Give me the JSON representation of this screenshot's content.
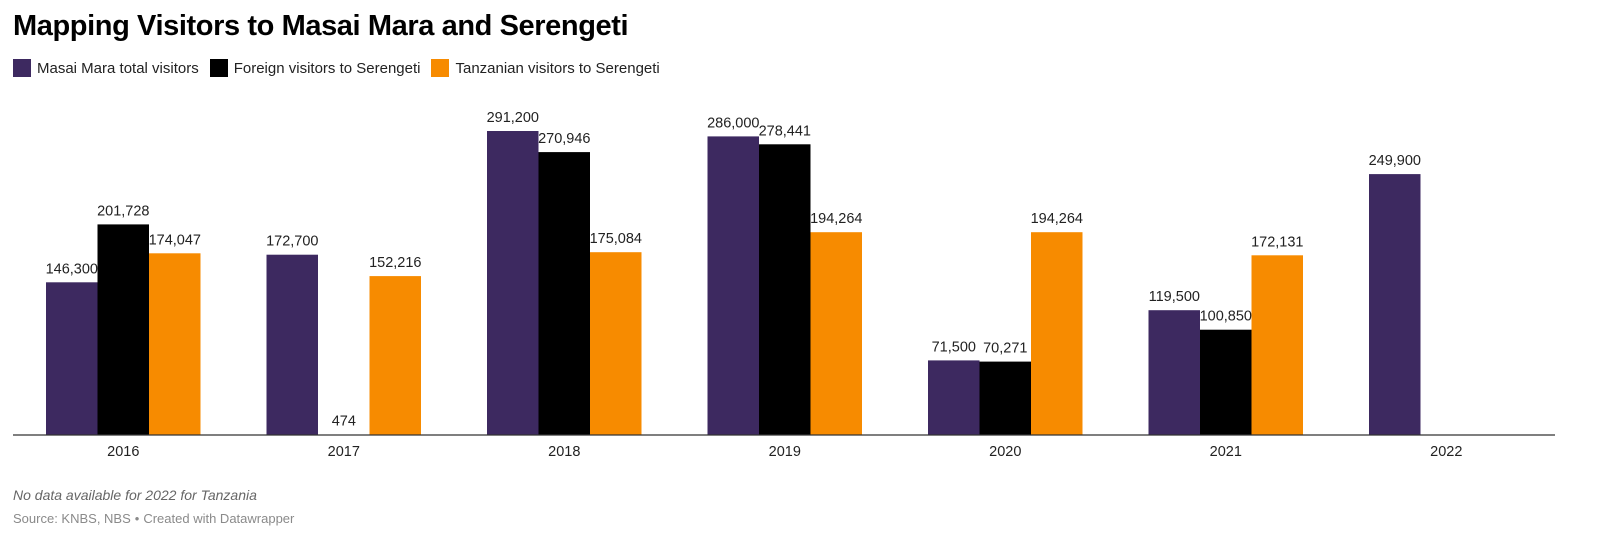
{
  "header": {
    "title": "Mapping Visitors to Masai Mara and Serengeti"
  },
  "footer": {
    "notes": "No data available for 2022 for Tanzania",
    "source": "Source: KNBS, NBS",
    "separator": "•",
    "credit": "Created with Datawrapper"
  },
  "chart_data": {
    "type": "bar",
    "title": "Mapping Visitors to Masai Mara and Serengeti",
    "xlabel": "",
    "ylabel": "",
    "categories": [
      "2016",
      "2017",
      "2018",
      "2019",
      "2020",
      "2021",
      "2022"
    ],
    "ylim": [
      0,
      300000
    ],
    "grid": false,
    "legend": "top-left",
    "series": [
      {
        "name": "Masai Mara total visitors",
        "color": "#3d2960",
        "values": [
          146300,
          172700,
          291200,
          286000,
          71500,
          119500,
          249900
        ],
        "labels": [
          "146,300",
          "172,700",
          "291,200",
          "286,000",
          "71,500",
          "119,500",
          "249,900"
        ]
      },
      {
        "name": "Foreign visitors to Serengeti",
        "color": "#000000",
        "values": [
          201728,
          474,
          270946,
          278441,
          70271,
          100850,
          null
        ],
        "labels": [
          "201,728",
          "474",
          "270,946",
          "278,441",
          "70,271",
          "100,850",
          ""
        ]
      },
      {
        "name": "Tanzanian visitors to Serengeti",
        "color": "#f78b00",
        "values": [
          174047,
          152216,
          175084,
          194264,
          194264,
          172131,
          null
        ],
        "labels": [
          "174,047",
          "152,216",
          "175,084",
          "194,264",
          "194,264",
          "172,131",
          ""
        ]
      }
    ]
  }
}
